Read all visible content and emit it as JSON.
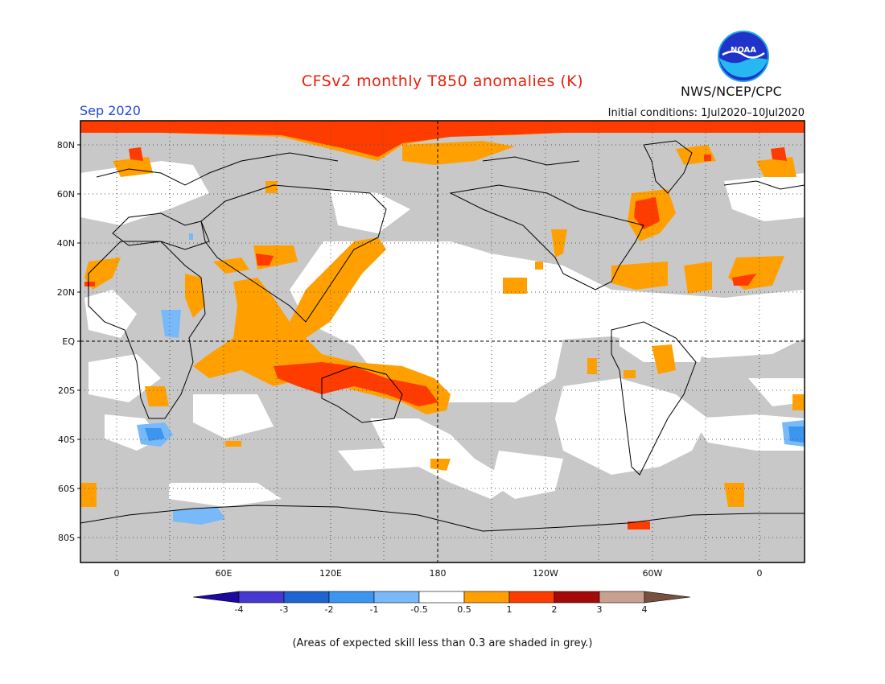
{
  "title": "CFSv2 monthly T850 anomalies (K)",
  "period": "Sep 2020",
  "agency": "NWS/NCEP/CPC",
  "logo_text": "NOAA",
  "initial_conditions": "Initial conditions: 1Jul2020–10Jul2020",
  "footnote": "(Areas of expected skill less than 0.3 are shaded in grey.)",
  "map": {
    "lat_labels": [
      "80N",
      "60N",
      "40N",
      "20N",
      "EQ",
      "20S",
      "40S",
      "60S",
      "80S"
    ],
    "lon_labels": [
      "0",
      "60E",
      "120E",
      "180",
      "120W",
      "60W",
      "0"
    ],
    "no_skill_color": "#c8c8c8",
    "land_outline_color": "#000000"
  },
  "colorbar": {
    "tick_labels": [
      "-4",
      "-3",
      "-2",
      "-1",
      "-0.5",
      "0.5",
      "1",
      "2",
      "3",
      "4"
    ],
    "bins": [
      {
        "range": "< -4",
        "color": "#1c0aa0"
      },
      {
        "range": "-4 to -3",
        "color": "#4638d0"
      },
      {
        "range": "-3 to -2",
        "color": "#1e64d2"
      },
      {
        "range": "-2 to -1",
        "color": "#3c96f0"
      },
      {
        "range": "-1 to -0.5",
        "color": "#78b9fa"
      },
      {
        "range": "-0.5 to 0.5",
        "color": "#ffffff"
      },
      {
        "range": "0.5 to 1",
        "color": "#ffa000"
      },
      {
        "range": "1 to 2",
        "color": "#ff3c00"
      },
      {
        "range": "2 to 3",
        "color": "#a50a0a"
      },
      {
        "range": "3 to 4",
        "color": "#c8a090"
      },
      {
        "range": "> 4",
        "color": "#785040"
      }
    ]
  }
}
